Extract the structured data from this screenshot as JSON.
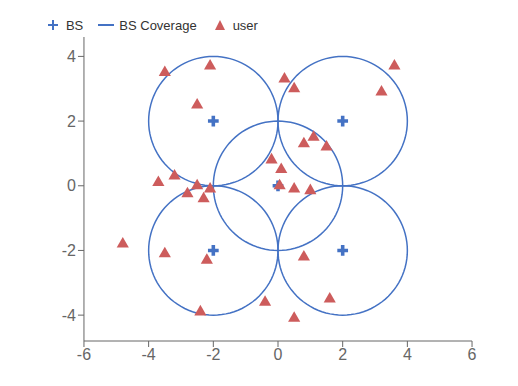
{
  "chart_data": {
    "type": "scatter",
    "series": [
      {
        "name": "BS",
        "type": "scatter",
        "marker": "plus",
        "color": "#4472C4",
        "x": [
          -2,
          2,
          -2,
          2,
          0
        ],
        "values": [
          2,
          2,
          -2,
          -2,
          0
        ]
      },
      {
        "name": "BS Coverage",
        "type": "circle",
        "line_style": "solid",
        "color": "#4472C4",
        "x": [
          -2,
          2,
          -2,
          2,
          0
        ],
        "values": [
          2,
          2,
          -2,
          -2,
          0
        ],
        "radius": 2.0
      },
      {
        "name": "user",
        "type": "scatter",
        "marker": "triangle",
        "color": "#CD5C5C",
        "x": [
          -3.5,
          -2.1,
          0.2,
          0.5,
          3.6,
          -2.5,
          -3.2,
          -3.7,
          -2.5,
          -2.1,
          -0.2,
          0.1,
          0.05,
          0.5,
          1.0,
          -2.8,
          -2.3,
          0.8,
          1.5,
          1.1,
          3.2,
          -4.8,
          -3.5,
          -2.2,
          0.8,
          -2.4,
          -0.4,
          0.5,
          1.6
        ],
        "values": [
          3.5,
          3.7,
          3.3,
          3.0,
          3.7,
          2.5,
          0.3,
          0.1,
          0.0,
          -0.1,
          0.8,
          0.5,
          0.0,
          -0.1,
          -0.15,
          -0.25,
          -0.4,
          1.3,
          1.2,
          1.5,
          2.9,
          -1.8,
          -2.1,
          -2.3,
          -2.2,
          -3.9,
          -3.6,
          -4.1,
          -3.5
        ]
      }
    ],
    "xlim": [
      -6,
      6
    ],
    "ylim": [
      -4.8,
      4.6
    ],
    "xticks": [
      -6,
      -4,
      -2,
      0,
      2,
      4,
      6
    ],
    "yticks": [
      -4,
      -2,
      0,
      2,
      4
    ],
    "grid": false,
    "legend": "upper left"
  }
}
